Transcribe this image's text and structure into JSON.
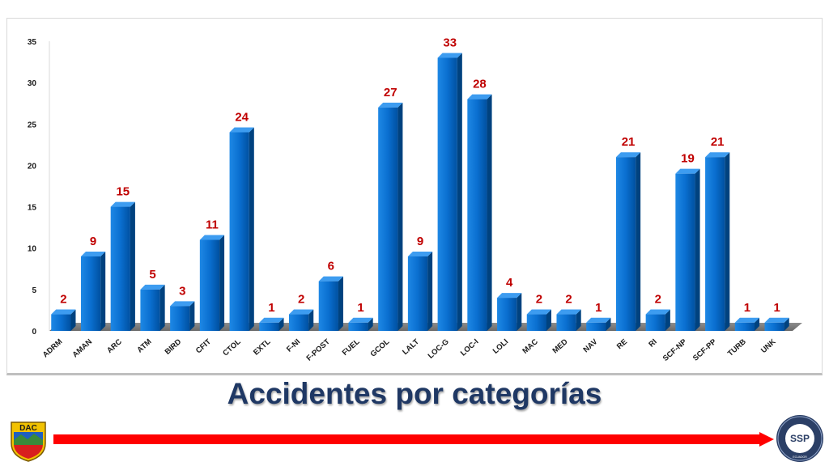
{
  "slide": {
    "title": "Accidentes por categorías",
    "logo_left_text": "DAC",
    "logo_right_text": "SSP",
    "logo_right_ring_text": "PROGRAMA DE SEGURIDAD OPERACIONAL",
    "logo_right_country": "ECUADOR",
    "accent_red": "#ff0000",
    "title_color": "#1f3864"
  },
  "chart_data": {
    "type": "bar",
    "categories": [
      "ADRM",
      "AMAN",
      "ARC",
      "ATM",
      "BIRD",
      "CFIT",
      "CTOL",
      "EXTL",
      "F-NI",
      "F-POST",
      "FUEL",
      "GCOL",
      "LALT",
      "LOC-G",
      "LOC-I",
      "LOLI",
      "MAC",
      "MED",
      "NAV",
      "RE",
      "RI",
      "SCF-NP",
      "SCF-PP",
      "TURB",
      "UNK"
    ],
    "values": [
      2,
      9,
      15,
      5,
      3,
      11,
      24,
      1,
      2,
      6,
      1,
      27,
      9,
      33,
      28,
      4,
      2,
      2,
      1,
      21,
      2,
      19,
      21,
      1,
      1
    ],
    "ylim": [
      0,
      35
    ],
    "yticks": [
      0,
      5,
      10,
      15,
      20,
      25,
      30,
      35
    ],
    "title": "",
    "xlabel": "",
    "ylabel": "",
    "bar_color": "#0070c0",
    "label_color": "#c00000",
    "grid": false,
    "legend": "none"
  }
}
